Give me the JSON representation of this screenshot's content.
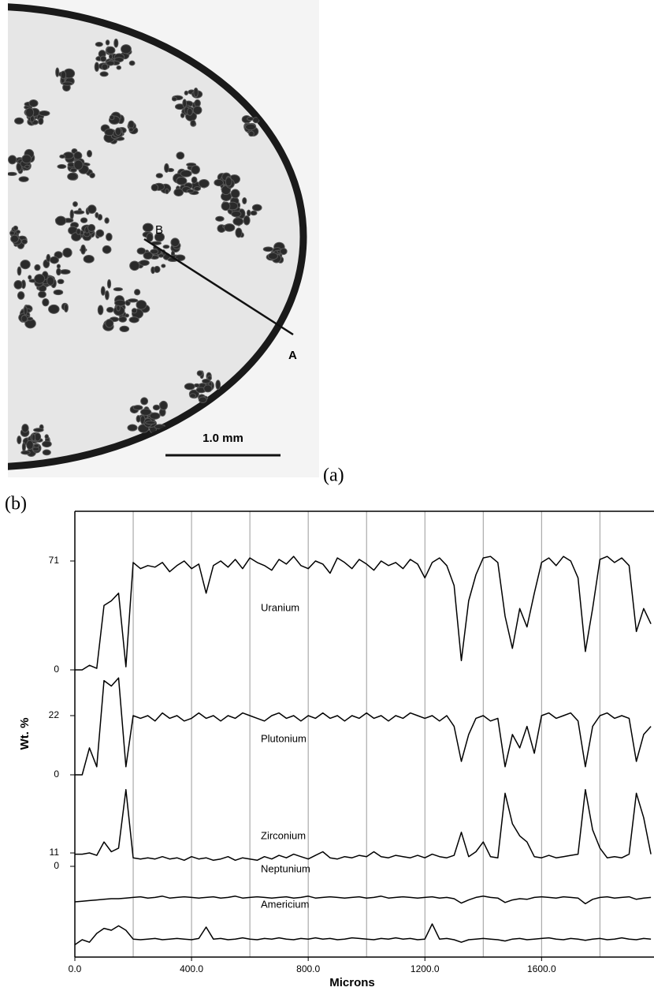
{
  "panel_a": {
    "marker_b": "B",
    "marker_a": "A",
    "scale_bar": "1.0 mm",
    "label": "(a)"
  },
  "chart_data": {
    "type": "line",
    "panel_label": "(b)",
    "y_label": "Wt. %",
    "x_label": "Microns",
    "xlim": [
      0,
      1980
    ],
    "xticks": [
      {
        "value": 0,
        "label": "0.0"
      },
      {
        "value": 400,
        "label": "400.0"
      },
      {
        "value": 800,
        "label": "800.0"
      },
      {
        "value": 1200,
        "label": "1200.0"
      },
      {
        "value": 1600,
        "label": "1600.0"
      }
    ],
    "xgrid": [
      200,
      400,
      600,
      800,
      1000,
      1200,
      1400,
      1600,
      1800
    ],
    "x": [
      0,
      25,
      50,
      75,
      100,
      125,
      150,
      175,
      200,
      225,
      250,
      275,
      300,
      325,
      350,
      375,
      400,
      425,
      450,
      475,
      500,
      525,
      550,
      575,
      600,
      625,
      650,
      675,
      700,
      725,
      750,
      775,
      800,
      825,
      850,
      875,
      900,
      925,
      950,
      975,
      1000,
      1025,
      1050,
      1075,
      1100,
      1125,
      1150,
      1175,
      1200,
      1225,
      1250,
      1275,
      1300,
      1325,
      1350,
      1375,
      1400,
      1425,
      1450,
      1475,
      1500,
      1525,
      1550,
      1575,
      1600,
      1625,
      1650,
      1675,
      1700,
      1725,
      1750,
      1775,
      1800,
      1825,
      1850,
      1875,
      1900,
      1925,
      1950,
      1975
    ],
    "series": [
      {
        "name": "Uranium",
        "color": "#000000",
        "ylim": [
          0,
          80
        ],
        "yticks": [
          0,
          71
        ],
        "values": [
          0,
          0,
          3,
          1,
          42,
          45,
          50,
          2,
          70,
          66,
          68,
          67,
          70,
          64,
          68,
          71,
          66,
          69,
          50,
          68,
          71,
          67,
          72,
          66,
          73,
          70,
          68,
          65,
          72,
          69,
          74,
          68,
          66,
          71,
          69,
          63,
          73,
          70,
          66,
          72,
          69,
          65,
          71,
          68,
          70,
          66,
          72,
          69,
          60,
          70,
          73,
          68,
          55,
          6,
          45,
          62,
          73,
          74,
          70,
          35,
          14,
          40,
          28,
          50,
          70,
          73,
          68,
          74,
          71,
          60,
          12,
          40,
          72,
          74,
          70,
          73,
          68,
          25,
          40,
          30
        ]
      },
      {
        "name": "Plutonium",
        "color": "#000000",
        "ylim": [
          0,
          40
        ],
        "yticks": [
          0,
          22
        ],
        "values": [
          0,
          0,
          10,
          3,
          35,
          33,
          36,
          3,
          22,
          21,
          22,
          20,
          23,
          21,
          22,
          20,
          21,
          23,
          21,
          22,
          20,
          22,
          21,
          23,
          22,
          21,
          20,
          22,
          23,
          21,
          22,
          20,
          22,
          21,
          23,
          21,
          22,
          20,
          22,
          21,
          23,
          21,
          22,
          20,
          22,
          21,
          23,
          22,
          21,
          22,
          20,
          22,
          18,
          5,
          15,
          21,
          22,
          20,
          21,
          3,
          15,
          10,
          18,
          8,
          22,
          23,
          21,
          22,
          23,
          20,
          3,
          18,
          22,
          23,
          21,
          22,
          21,
          5,
          15,
          18
        ]
      },
      {
        "name": "Zirconium",
        "color": "#000000",
        "ylim": [
          0,
          70
        ],
        "yticks": [
          0,
          11
        ],
        "values": [
          10,
          10,
          11,
          9,
          20,
          12,
          15,
          63,
          7,
          6,
          7,
          6,
          8,
          6,
          7,
          5,
          8,
          6,
          7,
          5,
          6,
          8,
          5,
          7,
          6,
          5,
          8,
          6,
          9,
          7,
          10,
          8,
          6,
          9,
          12,
          7,
          6,
          8,
          7,
          9,
          8,
          12,
          8,
          7,
          9,
          8,
          7,
          9,
          7,
          10,
          8,
          7,
          9,
          28,
          8,
          12,
          20,
          8,
          7,
          60,
          35,
          25,
          20,
          8,
          7,
          9,
          7,
          8,
          9,
          10,
          63,
          30,
          15,
          7,
          8,
          7,
          10,
          60,
          40,
          10
        ]
      },
      {
        "name": "Neptunium",
        "color": "#000000",
        "ylim": [
          0,
          5
        ],
        "yticks": [],
        "values": [
          1.5,
          1.6,
          1.7,
          1.8,
          1.9,
          2.0,
          2.0,
          2.1,
          2.2,
          2.3,
          2.1,
          2.2,
          2.4,
          2.1,
          2.2,
          2.3,
          2.2,
          2.1,
          2.2,
          2.3,
          2.1,
          2.2,
          2.4,
          2.1,
          2.2,
          2.3,
          2.2,
          2.1,
          2.2,
          2.3,
          2.1,
          2.2,
          2.4,
          2.1,
          2.2,
          2.3,
          2.2,
          2.1,
          2.2,
          2.3,
          2.1,
          2.2,
          2.4,
          2.1,
          2.2,
          2.3,
          2.2,
          2.1,
          2.2,
          2.3,
          2.1,
          2.2,
          2.0,
          1.3,
          1.8,
          2.2,
          2.4,
          2.2,
          2.1,
          1.4,
          1.8,
          2.0,
          1.9,
          2.2,
          2.3,
          2.2,
          2.1,
          2.3,
          2.2,
          2.1,
          1.2,
          1.9,
          2.2,
          2.3,
          2.1,
          2.2,
          2.3,
          1.9,
          2.1,
          2.2
        ]
      },
      {
        "name": "Americium",
        "color": "#000000",
        "ylim": [
          0,
          5
        ],
        "yticks": [],
        "values": [
          1.2,
          2.0,
          1.6,
          3.0,
          3.8,
          3.5,
          4.2,
          3.5,
          2.1,
          2.0,
          2.1,
          2.2,
          2.0,
          2.1,
          2.2,
          2.1,
          2.0,
          2.2,
          4.0,
          2.1,
          2.2,
          2.0,
          2.1,
          2.3,
          2.1,
          2.0,
          2.2,
          2.1,
          2.3,
          2.1,
          2.0,
          2.2,
          2.1,
          2.3,
          2.1,
          2.2,
          2.0,
          2.1,
          2.3,
          2.2,
          2.1,
          2.0,
          2.2,
          2.1,
          2.3,
          2.1,
          2.2,
          2.0,
          2.1,
          4.5,
          2.1,
          2.2,
          2.0,
          1.6,
          2.0,
          2.1,
          2.2,
          2.1,
          2.0,
          1.8,
          2.1,
          2.2,
          2.0,
          2.1,
          2.2,
          2.3,
          2.1,
          2.0,
          2.2,
          2.1,
          1.9,
          2.1,
          2.2,
          2.0,
          2.1,
          2.3,
          2.1,
          2.0,
          2.2,
          2.1
        ]
      }
    ]
  }
}
